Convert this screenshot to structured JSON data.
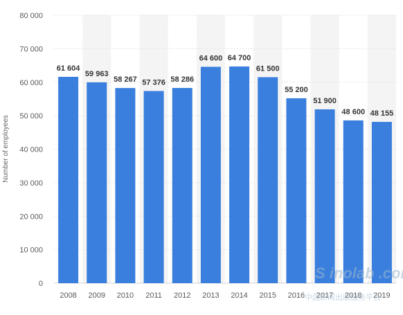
{
  "chart_data": {
    "type": "bar",
    "title": "",
    "xlabel": "",
    "ylabel": "Number of employees",
    "categories": [
      "2008",
      "2009",
      "2010",
      "2011",
      "2012",
      "2013",
      "2014",
      "2015",
      "2016",
      "2017",
      "2018",
      "2019"
    ],
    "values": [
      61604,
      59963,
      58267,
      57376,
      58286,
      64600,
      64700,
      61500,
      55200,
      51900,
      48600,
      48155
    ],
    "data_labels": [
      "61 604",
      "59 963",
      "58 267",
      "57 376",
      "58 286",
      "64 600",
      "64 700",
      "61 500",
      "55 200",
      "51 900",
      "48 600",
      "48 155"
    ],
    "ylim": [
      0,
      80000
    ],
    "yticks": [
      0,
      10000,
      20000,
      30000,
      40000,
      50000,
      60000,
      70000,
      80000
    ],
    "ytick_labels": [
      "0",
      "10 000",
      "20 000",
      "30 000",
      "40 000",
      "50 000",
      "60 000",
      "70 000",
      "80 000"
    ],
    "grid": true,
    "bar_color": "#3a7fde",
    "alt_band_color": "#f4f4f4"
  },
  "watermark": {
    "text": "S inolab .com",
    "subtext": "中国新闻出版服务平台"
  }
}
